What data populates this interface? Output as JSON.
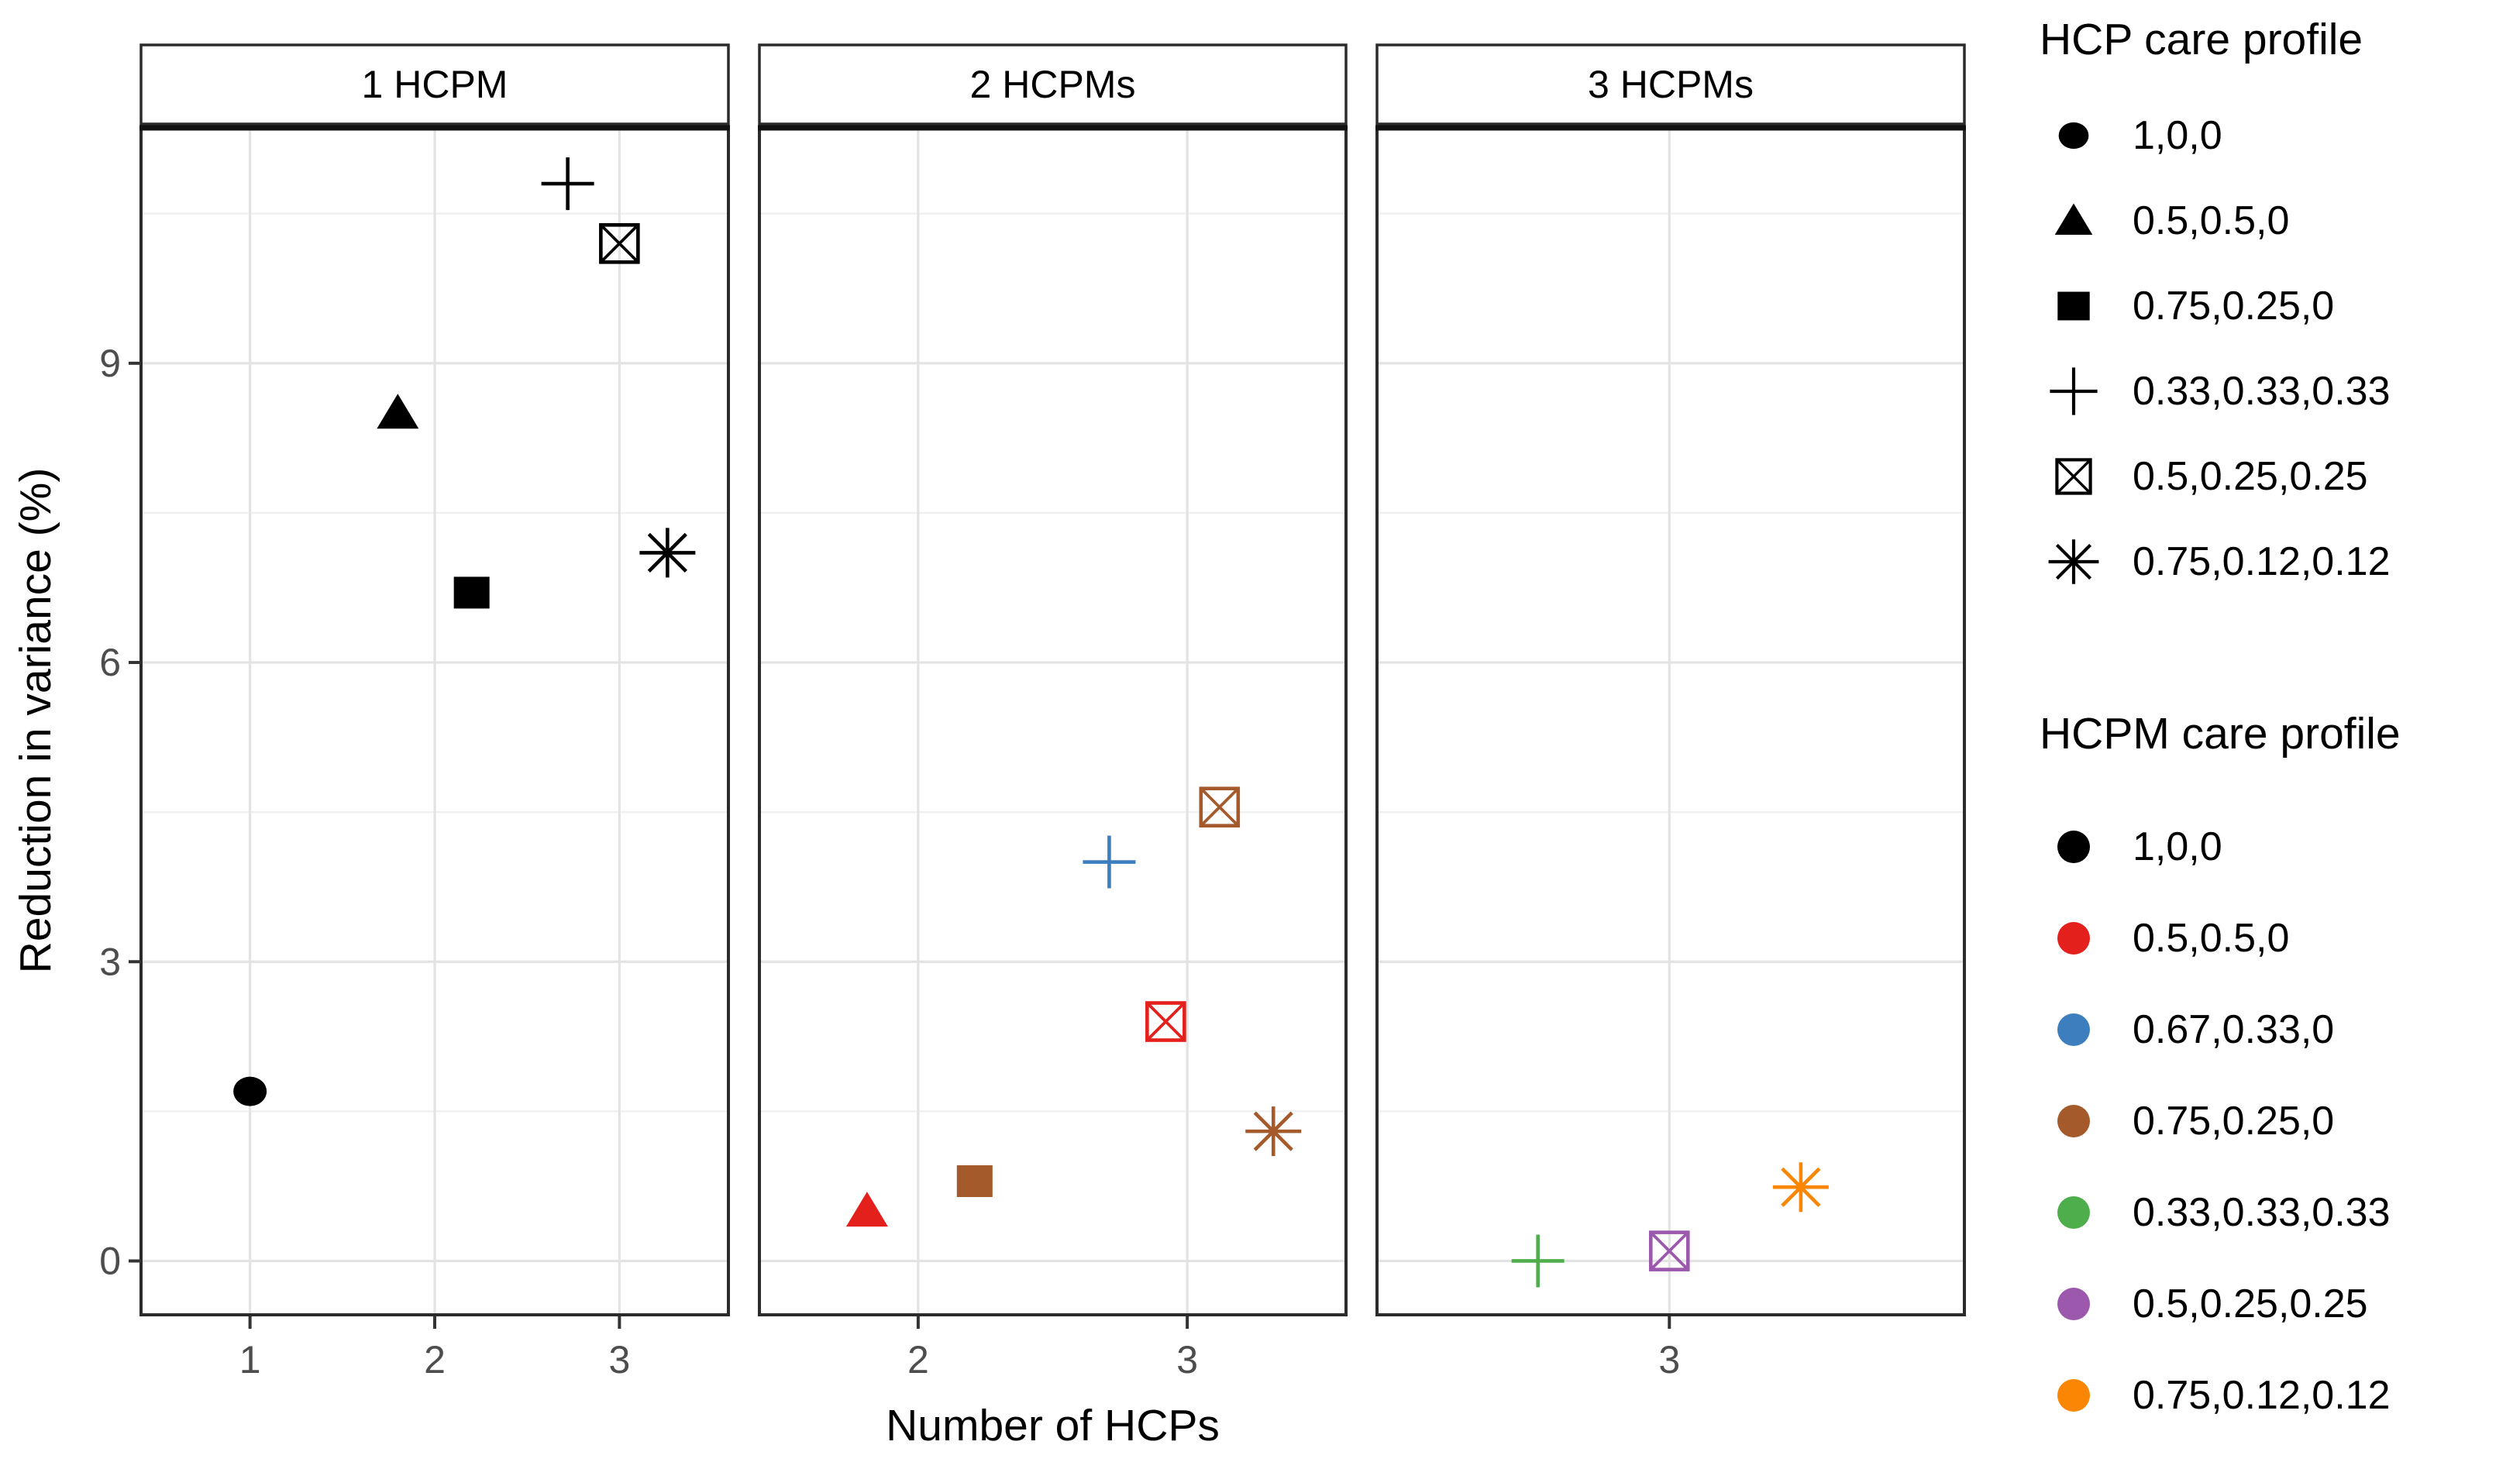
{
  "chart_data": {
    "type": "scatter",
    "xlabel": "Number of HCPs",
    "ylabel": "Reduction in variance (%)",
    "y_ticks": [
      0,
      3,
      6,
      9
    ],
    "y_minor_ticks": [
      1.5,
      4.5,
      7.5,
      10.5
    ],
    "ylim": [
      -0.54,
      11.36
    ],
    "grid": true,
    "legend_position": "right",
    "facets": [
      {
        "title": "1 HCPM",
        "xlim": [
          0.41,
          3.59
        ],
        "x_ticks": [
          1,
          2,
          3
        ],
        "points": [
          {
            "x": 1.0,
            "y": 1.7,
            "shape": "circle",
            "color": "black",
            "hcp_profile": "1,0,0",
            "hcpm_profile": "1,0,0"
          },
          {
            "x": 1.8,
            "y": 8.5,
            "shape": "triangle",
            "color": "black",
            "hcp_profile": "0.5,0.5,0",
            "hcpm_profile": "1,0,0"
          },
          {
            "x": 2.2,
            "y": 6.7,
            "shape": "square",
            "color": "black",
            "hcp_profile": "0.75,0.25,0",
            "hcpm_profile": "1,0,0"
          },
          {
            "x": 2.72,
            "y": 10.8,
            "shape": "plus",
            "color": "black",
            "hcp_profile": "0.33,0.33,0.33",
            "hcpm_profile": "1,0,0"
          },
          {
            "x": 3.0,
            "y": 10.2,
            "shape": "box-x",
            "color": "black",
            "hcp_profile": "0.5,0.25,0.25",
            "hcpm_profile": "1,0,0"
          },
          {
            "x": 3.26,
            "y": 7.1,
            "shape": "asterisk",
            "color": "black",
            "hcp_profile": "0.75,0.12,0.12",
            "hcpm_profile": "1,0,0"
          }
        ]
      },
      {
        "title": "2 HCPMs",
        "xlim": [
          1.41,
          3.59
        ],
        "x_ticks": [
          2,
          3
        ],
        "points": [
          {
            "x": 1.81,
            "y": 0.5,
            "shape": "triangle",
            "color": "red",
            "hcp_profile": "0.5,0.5,0",
            "hcpm_profile": "0.5,0.5,0"
          },
          {
            "x": 2.21,
            "y": 0.8,
            "shape": "square",
            "color": "brown",
            "hcp_profile": "0.75,0.25,0",
            "hcpm_profile": "0.75,0.25,0"
          },
          {
            "x": 2.71,
            "y": 4.0,
            "shape": "plus",
            "color": "blue",
            "hcp_profile": "0.33,0.33,0.33",
            "hcpm_profile": "0.67,0.33,0"
          },
          {
            "x": 2.92,
            "y": 2.4,
            "shape": "box-x",
            "color": "red",
            "hcp_profile": "0.5,0.25,0.25",
            "hcpm_profile": "0.5,0.5,0"
          },
          {
            "x": 3.12,
            "y": 4.55,
            "shape": "box-x",
            "color": "brown",
            "hcp_profile": "0.5,0.25,0.25",
            "hcpm_profile": "0.75,0.25,0"
          },
          {
            "x": 3.32,
            "y": 1.3,
            "shape": "asterisk",
            "color": "brown",
            "hcp_profile": "0.75,0.12,0.12",
            "hcpm_profile": "0.75,0.25,0"
          }
        ]
      },
      {
        "title": "3 HCPMs",
        "xlim": [
          1.91,
          4.1
        ],
        "x_ticks": [
          3
        ],
        "points": [
          {
            "x": 2.51,
            "y": 0.0,
            "shape": "plus",
            "color": "green",
            "hcp_profile": "0.33,0.33,0.33",
            "hcpm_profile": "0.33,0.33,0.33"
          },
          {
            "x": 3.0,
            "y": 0.1,
            "shape": "box-x",
            "color": "purple",
            "hcp_profile": "0.5,0.25,0.25",
            "hcpm_profile": "0.5,0.25,0.25"
          },
          {
            "x": 3.49,
            "y": 0.74,
            "shape": "asterisk",
            "color": "orange",
            "hcp_profile": "0.75,0.12,0.12",
            "hcpm_profile": "0.75,0.12,0.12"
          }
        ]
      }
    ]
  },
  "colors": {
    "black": "#000000",
    "red": "#E3201B",
    "blue": "#3D7EBE",
    "brown": "#A45A2B",
    "green": "#4EAE4C",
    "purple": "#9B58AD",
    "orange": "#FB8604",
    "grid_major": "#e3e3e3",
    "grid_minor": "#f1f1f1",
    "panel_border": "#2b2b2b",
    "tick_label": "#4d4d4d"
  },
  "legends": {
    "shape": {
      "title": "HCP care profile",
      "items": [
        {
          "shape": "circle",
          "label": "1,0,0"
        },
        {
          "shape": "triangle",
          "label": "0.5,0.5,0"
        },
        {
          "shape": "square",
          "label": "0.75,0.25,0"
        },
        {
          "shape": "plus",
          "label": "0.33,0.33,0.33"
        },
        {
          "shape": "box-x",
          "label": "0.5,0.25,0.25"
        },
        {
          "shape": "asterisk",
          "label": "0.75,0.12,0.12"
        }
      ]
    },
    "color": {
      "title": "HCPM care profile",
      "items": [
        {
          "color": "black",
          "label": "1,0,0"
        },
        {
          "color": "red",
          "label": "0.5,0.5,0"
        },
        {
          "color": "blue",
          "label": "0.67,0.33,0"
        },
        {
          "color": "brown",
          "label": "0.75,0.25,0"
        },
        {
          "color": "green",
          "label": "0.33,0.33,0.33"
        },
        {
          "color": "purple",
          "label": "0.5,0.25,0.25"
        },
        {
          "color": "orange",
          "label": "0.75,0.12,0.12"
        }
      ]
    }
  }
}
